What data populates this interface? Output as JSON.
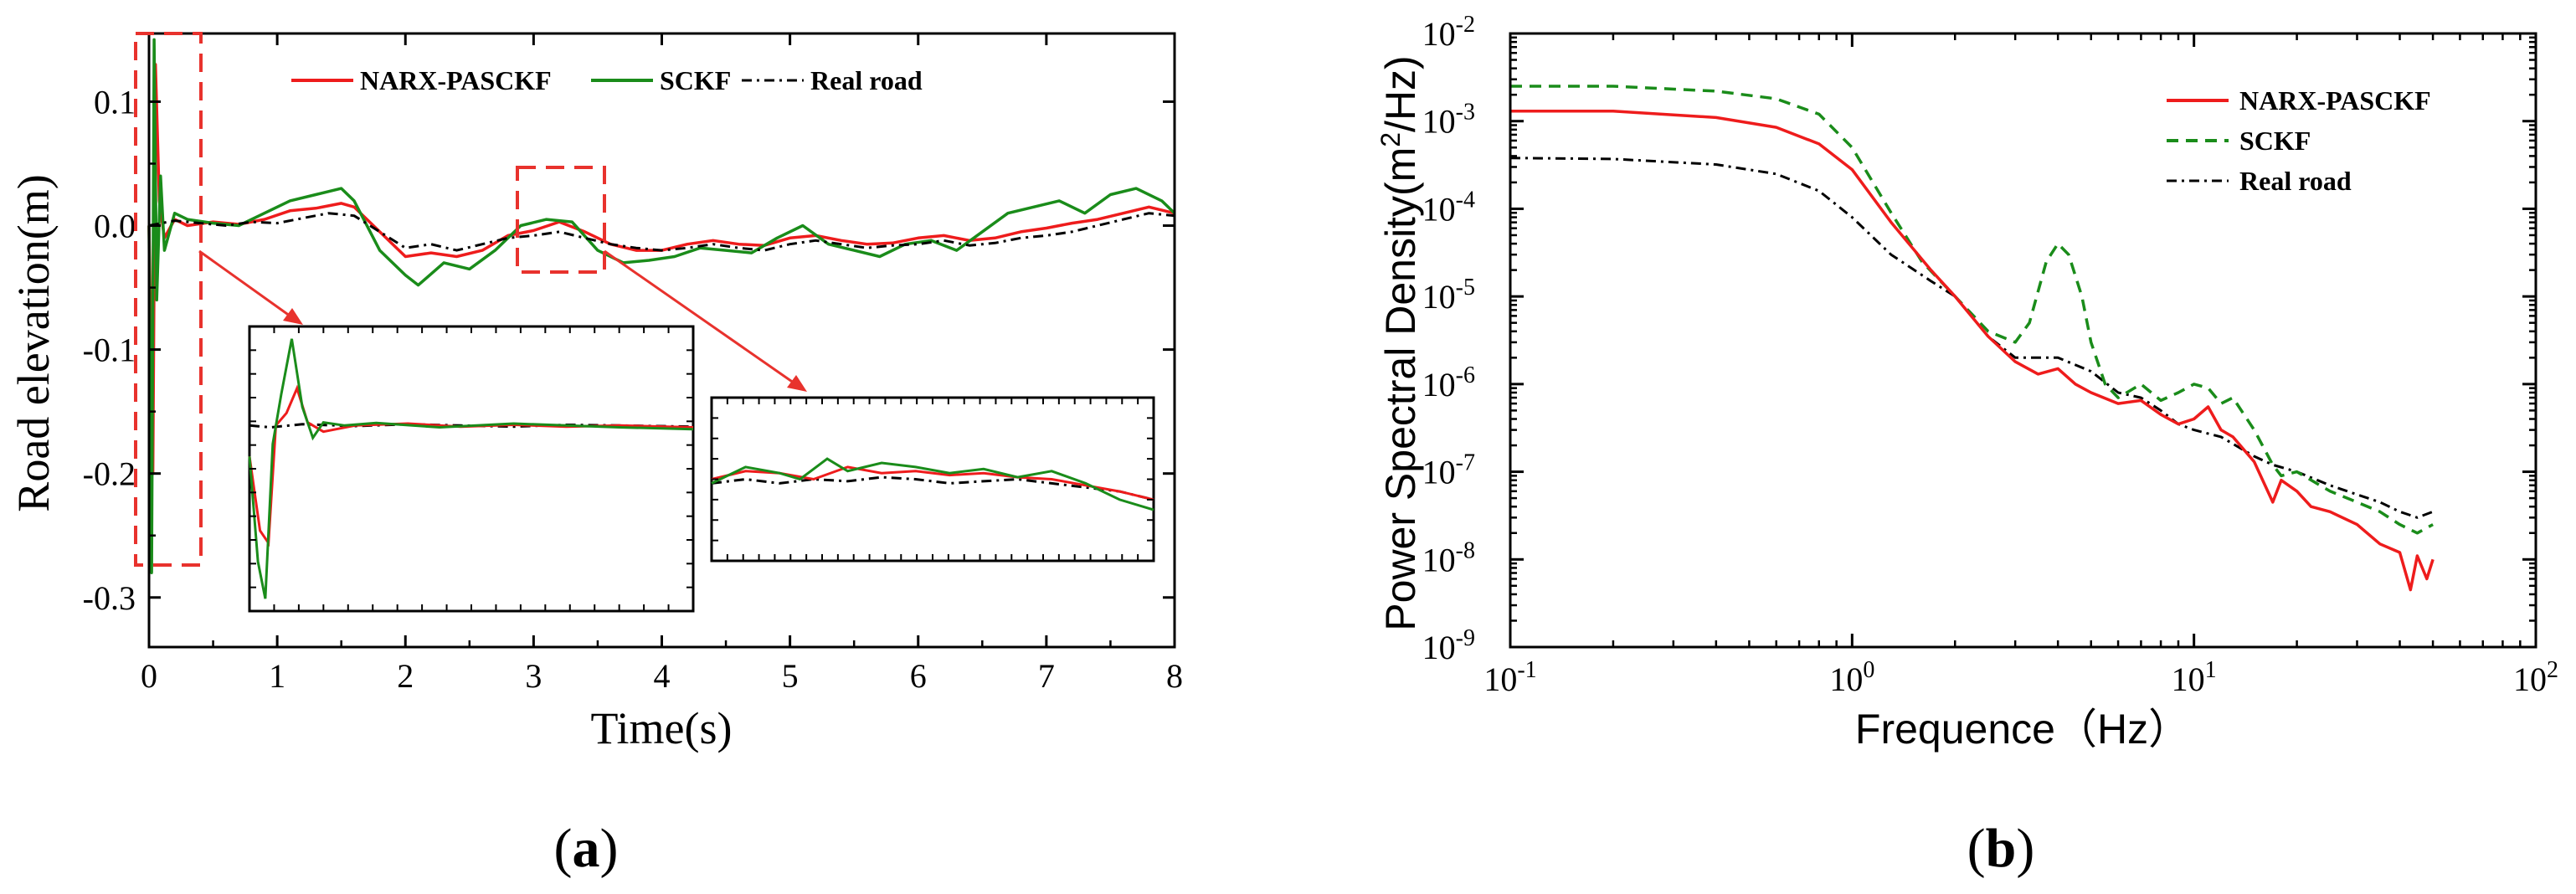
{
  "colors": {
    "narx": "#ee1c1c",
    "sckf": "#1a8c1a",
    "real": "#000000",
    "highlight": "#e8322d"
  },
  "panels": {
    "a_label": "a",
    "b_label": "b"
  },
  "chart_data": [
    {
      "id": "a",
      "type": "line",
      "xlabel": "Time(s)",
      "ylabel": "Road elevation(m)",
      "xlim": [
        0,
        8
      ],
      "ylim": [
        -0.34,
        0.155
      ],
      "xticks": [
        "0",
        "1",
        "2",
        "3",
        "4",
        "5",
        "6",
        "7",
        "8"
      ],
      "yticks": [
        "0.1",
        "0.0",
        "-0.1",
        "-0.2",
        "-0.3"
      ],
      "legend": [
        "NARX-PASCKF",
        "SCKF",
        "Real road"
      ],
      "series": [
        {
          "name": "NARX-PASCKF",
          "x": [
            0,
            0.03,
            0.05,
            0.08,
            0.12,
            0.2,
            0.3,
            0.5,
            0.7,
            0.9,
            1.1,
            1.3,
            1.5,
            1.6,
            1.8,
            2.0,
            2.2,
            2.4,
            2.6,
            2.8,
            3.0,
            3.2,
            3.4,
            3.6,
            3.8,
            4.0,
            4.2,
            4.4,
            4.6,
            4.8,
            5.0,
            5.2,
            5.4,
            5.6,
            5.8,
            6.0,
            6.2,
            6.4,
            6.6,
            6.8,
            7.0,
            7.2,
            7.4,
            7.6,
            7.8,
            8.0
          ],
          "y": [
            0.0,
            -0.2,
            0.13,
            0.02,
            -0.01,
            0.005,
            0.0,
            0.003,
            0.001,
            0.005,
            0.012,
            0.014,
            0.018,
            0.015,
            -0.005,
            -0.025,
            -0.022,
            -0.025,
            -0.02,
            -0.008,
            -0.004,
            0.003,
            -0.005,
            -0.015,
            -0.02,
            -0.02,
            -0.015,
            -0.012,
            -0.015,
            -0.016,
            -0.01,
            -0.008,
            -0.012,
            -0.015,
            -0.014,
            -0.01,
            -0.008,
            -0.012,
            -0.01,
            -0.005,
            -0.002,
            0.002,
            0.005,
            0.01,
            0.015,
            0.01
          ]
        },
        {
          "name": "SCKF",
          "x": [
            0,
            0.02,
            0.04,
            0.06,
            0.09,
            0.12,
            0.2,
            0.3,
            0.5,
            0.7,
            0.9,
            1.1,
            1.3,
            1.5,
            1.6,
            1.8,
            2.0,
            2.1,
            2.3,
            2.5,
            2.7,
            2.9,
            3.1,
            3.3,
            3.5,
            3.7,
            3.9,
            4.1,
            4.3,
            4.5,
            4.7,
            4.9,
            5.1,
            5.3,
            5.5,
            5.7,
            5.9,
            6.1,
            6.3,
            6.5,
            6.7,
            6.9,
            7.1,
            7.3,
            7.5,
            7.7,
            7.9,
            8.0
          ],
          "y": [
            0.0,
            -0.28,
            0.15,
            -0.06,
            0.04,
            -0.02,
            0.01,
            0.005,
            0.002,
            0.0,
            0.01,
            0.02,
            0.025,
            0.03,
            0.02,
            -0.02,
            -0.04,
            -0.048,
            -0.03,
            -0.035,
            -0.02,
            0.0,
            0.005,
            0.003,
            -0.02,
            -0.03,
            -0.028,
            -0.025,
            -0.018,
            -0.02,
            -0.022,
            -0.01,
            0.0,
            -0.015,
            -0.02,
            -0.025,
            -0.015,
            -0.012,
            -0.02,
            -0.005,
            0.01,
            0.015,
            0.02,
            0.01,
            0.025,
            0.03,
            0.02,
            0.01
          ]
        },
        {
          "name": "Real road",
          "x": [
            0,
            0.2,
            0.4,
            0.6,
            0.8,
            1.0,
            1.2,
            1.4,
            1.6,
            1.8,
            2.0,
            2.2,
            2.4,
            2.6,
            2.8,
            3.0,
            3.2,
            3.4,
            3.6,
            3.8,
            4.0,
            4.2,
            4.4,
            4.6,
            4.8,
            5.0,
            5.2,
            5.4,
            5.6,
            5.8,
            6.0,
            6.2,
            6.4,
            6.6,
            6.8,
            7.0,
            7.2,
            7.4,
            7.6,
            7.8,
            8.0
          ],
          "y": [
            0.0,
            0.004,
            0.002,
            0.0,
            0.003,
            0.002,
            0.006,
            0.01,
            0.008,
            -0.005,
            -0.018,
            -0.015,
            -0.02,
            -0.015,
            -0.01,
            -0.008,
            -0.005,
            -0.01,
            -0.015,
            -0.018,
            -0.02,
            -0.018,
            -0.015,
            -0.018,
            -0.02,
            -0.015,
            -0.012,
            -0.015,
            -0.018,
            -0.016,
            -0.015,
            -0.012,
            -0.016,
            -0.014,
            -0.01,
            -0.008,
            -0.005,
            0.0,
            0.005,
            0.01,
            0.008
          ]
        }
      ]
    },
    {
      "id": "b",
      "type": "line",
      "scale": "log-log",
      "xlabel": "Frequence（Hz）",
      "ylabel_prefix": "Power Spectral Density(m",
      "ylabel_sup": "2",
      "ylabel_suffix": "/Hz)",
      "xlim": [
        0.1,
        100
      ],
      "ylim": [
        1e-09,
        0.01
      ],
      "xticks": [
        {
          "base": "10",
          "exp": "-1"
        },
        {
          "base": "10",
          "exp": "0"
        },
        {
          "base": "10",
          "exp": "1"
        },
        {
          "base": "10",
          "exp": "2"
        }
      ],
      "yticks": [
        {
          "base": "10",
          "exp": "-2"
        },
        {
          "base": "10",
          "exp": "-3"
        },
        {
          "base": "10",
          "exp": "-4"
        },
        {
          "base": "10",
          "exp": "-5"
        },
        {
          "base": "10",
          "exp": "-6"
        },
        {
          "base": "10",
          "exp": "-7"
        },
        {
          "base": "10",
          "exp": "-8"
        },
        {
          "base": "10",
          "exp": "-9"
        }
      ],
      "legend": [
        "NARX-PASCKF",
        "SCKF",
        "Real road"
      ],
      "series": [
        {
          "name": "NARX-PASCKF",
          "x": [
            0.1,
            0.2,
            0.4,
            0.6,
            0.8,
            1.0,
            1.3,
            1.7,
            2.0,
            2.5,
            3.0,
            3.5,
            4.0,
            4.5,
            5.0,
            6.0,
            7.0,
            8.0,
            9.0,
            10.0,
            11.0,
            12.0,
            13.0,
            15.0,
            17.0,
            18.0,
            20.0,
            22.0,
            25.0,
            30.0,
            35.0,
            40.0,
            43.0,
            45.0,
            48.0,
            50.0
          ],
          "y": [
            0.0013,
            0.0013,
            0.0011,
            0.00085,
            0.00055,
            0.00028,
            7e-05,
            2e-05,
            1e-05,
            3.5e-06,
            1.8e-06,
            1.3e-06,
            1.5e-06,
            1e-06,
            8e-07,
            6e-07,
            6.5e-07,
            4.5e-07,
            3.5e-07,
            4e-07,
            5.5e-07,
            3e-07,
            2.5e-07,
            1.3e-07,
            4.5e-08,
            8e-08,
            6e-08,
            4e-08,
            3.5e-08,
            2.5e-08,
            1.5e-08,
            1.2e-08,
            4.5e-09,
            1.1e-08,
            6e-09,
            1e-08
          ]
        },
        {
          "name": "SCKF",
          "x": [
            0.1,
            0.2,
            0.4,
            0.6,
            0.8,
            1.0,
            1.3,
            1.6,
            2.0,
            2.5,
            3.0,
            3.3,
            3.7,
            4.0,
            4.3,
            4.7,
            5.0,
            5.5,
            6.0,
            7.0,
            8.0,
            9.0,
            10.0,
            11.0,
            12.0,
            13.0,
            15.0,
            17.0,
            18.0,
            20.0,
            25.0,
            30.0,
            35.0,
            40.0,
            45.0,
            50.0
          ],
          "y": [
            0.0025,
            0.0025,
            0.0022,
            0.0018,
            0.0012,
            0.0005,
            9e-05,
            2.5e-05,
            1e-05,
            4e-06,
            3e-06,
            5e-06,
            2.5e-05,
            4e-05,
            3e-05,
            1e-05,
            3e-06,
            1e-06,
            7e-07,
            1e-06,
            6.5e-07,
            8e-07,
            1e-06,
            9e-07,
            6e-07,
            7e-07,
            3e-07,
            1.2e-07,
            9e-08,
            1e-07,
            6e-08,
            4.5e-08,
            3.5e-08,
            2.5e-08,
            2e-08,
            2.5e-08
          ]
        },
        {
          "name": "Real road",
          "x": [
            0.1,
            0.2,
            0.4,
            0.6,
            0.8,
            1.0,
            1.3,
            1.7,
            2.0,
            2.5,
            3.0,
            3.5,
            4.0,
            5.0,
            6.0,
            7.0,
            8.0,
            9.0,
            10.0,
            12.0,
            15.0,
            17.0,
            20.0,
            25.0,
            30.0,
            35.0,
            40.0,
            45.0,
            50.0
          ],
          "y": [
            0.00038,
            0.00037,
            0.00032,
            0.00025,
            0.00016,
            8e-05,
            3e-05,
            1.5e-05,
            1e-05,
            3.5e-06,
            2e-06,
            2e-06,
            2e-06,
            1.4e-06,
            8e-07,
            7e-07,
            5e-07,
            3.5e-07,
            3e-07,
            2.5e-07,
            1.5e-07,
            1.2e-07,
            1e-07,
            7e-08,
            5.5e-08,
            4.5e-08,
            3.5e-08,
            3e-08,
            3.5e-08
          ]
        }
      ]
    }
  ]
}
